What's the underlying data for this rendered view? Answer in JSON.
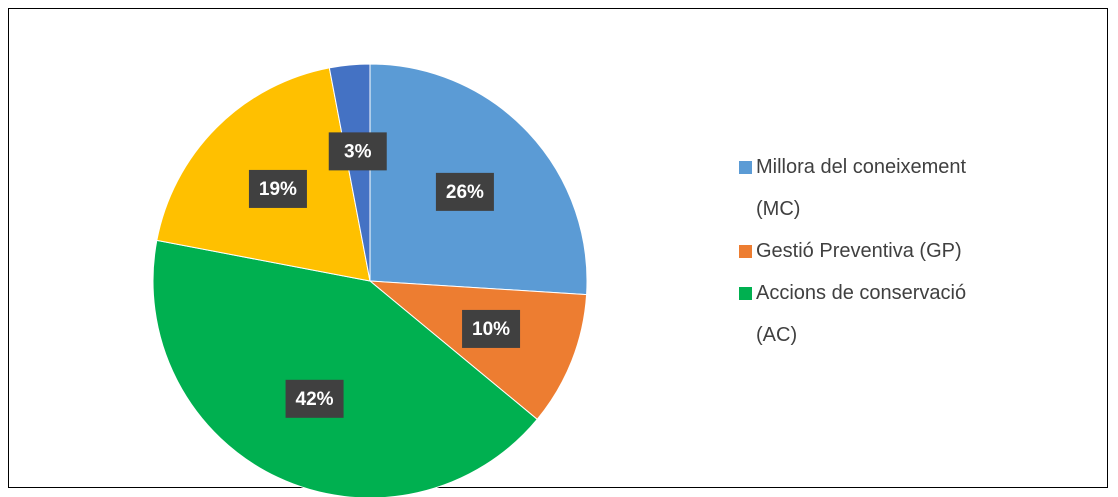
{
  "chart_data": {
    "type": "pie",
    "categories": [
      "Millora del coneixement (MC)",
      "Gestió Preventiva (GP)",
      "Accions de conservació (AC)",
      null,
      null
    ],
    "values": [
      26,
      10,
      42,
      19,
      3
    ],
    "value_labels": [
      "26%",
      "10%",
      "42%",
      "19%",
      "3%"
    ],
    "colors": [
      "#5b9bd5",
      "#ed7d31",
      "#00b050",
      "#ffc000",
      "#4472c4"
    ],
    "legend": "right"
  }
}
